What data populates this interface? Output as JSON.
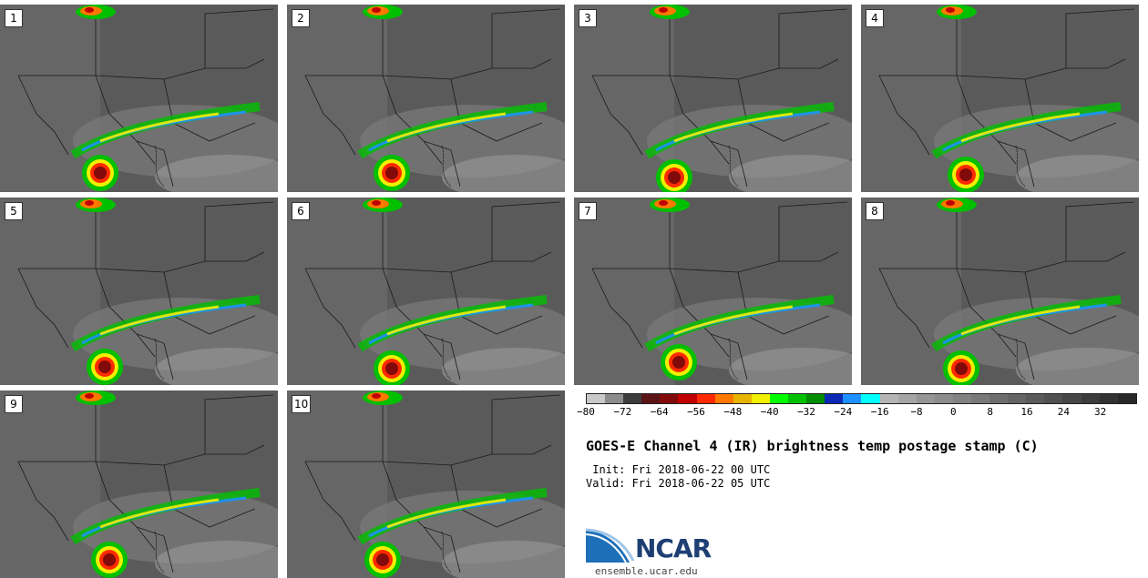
{
  "panels": [
    {
      "label": "1"
    },
    {
      "label": "2"
    },
    {
      "label": "3"
    },
    {
      "label": "4"
    },
    {
      "label": "5"
    },
    {
      "label": "6"
    },
    {
      "label": "7"
    },
    {
      "label": "8"
    },
    {
      "label": "9"
    },
    {
      "label": "10"
    }
  ],
  "colorbar": {
    "colors": [
      "#c8c8c8",
      "#8c8c8c",
      "#3c3c3c",
      "#5a1414",
      "#820a0a",
      "#c00000",
      "#ff2a00",
      "#ff7800",
      "#e6b400",
      "#f0f000",
      "#00ff00",
      "#00c000",
      "#008c00",
      "#0a28b4",
      "#1e90ff",
      "#00ffff",
      "#b4b4b4",
      "#a5a5a5",
      "#969696",
      "#8c8c8c",
      "#828282",
      "#787878",
      "#6e6e6e",
      "#646464",
      "#5a5a5a",
      "#505050",
      "#464646",
      "#3c3c3c",
      "#323232",
      "#282828"
    ],
    "ticks": [
      "−80",
      "−72",
      "−64",
      "−56",
      "−48",
      "−40",
      "−32",
      "−24",
      "−16",
      "−8",
      "0",
      "8",
      "16",
      "24",
      "32"
    ]
  },
  "title": "GOES-E Channel 4 (IR) brightness temp postage stamp (C)",
  "init": " Init: Fri 2018-06-22 00 UTC",
  "valid": "Valid: Fri 2018-06-22 05 UTC",
  "logo_text": "NCAR",
  "website": "ensemble.ucar.edu",
  "colors": {
    "map_bg": "#5a5a5a",
    "border": "#1a1a1a",
    "accent": "#1d3f73"
  }
}
